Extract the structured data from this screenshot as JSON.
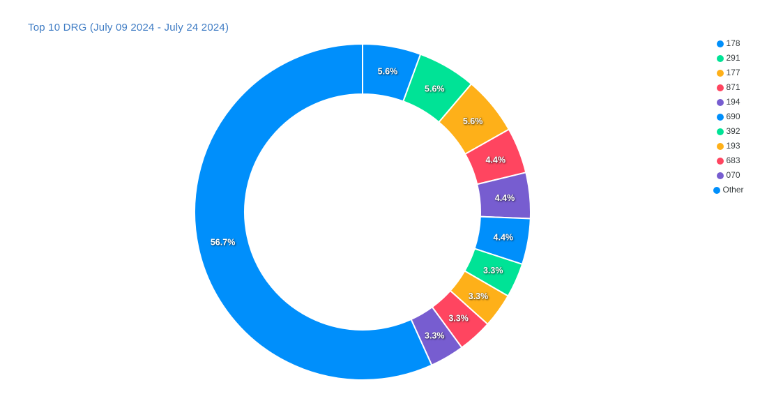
{
  "chart_data": {
    "type": "pie",
    "subtype": "donut",
    "title": "Top 10 DRG (July 09 2024 - July 24 2024)",
    "title_color": "#3F7CC4",
    "categories": [
      "178",
      "291",
      "177",
      "871",
      "194",
      "690",
      "392",
      "193",
      "683",
      "070",
      "Other"
    ],
    "values": [
      5.6,
      5.6,
      5.6,
      4.4,
      4.4,
      4.4,
      3.3,
      3.3,
      3.3,
      3.3,
      56.7
    ],
    "data_labels": [
      "5.6%",
      "5.6%",
      "5.6%",
      "4.4%",
      "4.4%",
      "4.4%",
      "3.3%",
      "3.3%",
      "3.3%",
      "3.3%",
      "56.7%"
    ],
    "colors": [
      "#008FFB",
      "#00E396",
      "#FEB019",
      "#FF4560",
      "#775DD0",
      "#008FFB",
      "#00E396",
      "#FEB019",
      "#FF4560",
      "#775DD0",
      "#008FFB"
    ],
    "legend_position": "right",
    "legend_marker_shape": "circle",
    "legend_text_color": "#373D3F",
    "start_angle": 0,
    "direction": "clockwise",
    "donut_hole_ratio": 0.7,
    "slice_border_color": "#FFFFFF",
    "data_label_color": "#FFFFFF",
    "background": "#FFFFFF"
  }
}
